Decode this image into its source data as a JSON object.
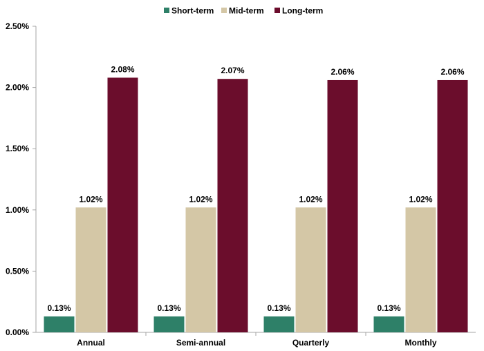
{
  "chart_data": {
    "type": "bar",
    "categories": [
      "Annual",
      "Semi-annual",
      "Quarterly",
      "Monthly"
    ],
    "series": [
      {
        "name": "Short-term",
        "values": [
          0.13,
          0.13,
          0.13,
          0.13
        ],
        "labels": [
          "0.13%",
          "0.13%",
          "0.13%",
          "0.13%"
        ],
        "color": "#2E8068"
      },
      {
        "name": "Mid-term",
        "values": [
          1.02,
          1.02,
          1.02,
          1.02
        ],
        "labels": [
          "1.02%",
          "1.02%",
          "1.02%",
          "1.02%"
        ],
        "color": "#D4C7A6"
      },
      {
        "name": "Long-term",
        "values": [
          2.08,
          2.07,
          2.06,
          2.06
        ],
        "labels": [
          "2.08%",
          "2.07%",
          "2.06%",
          "2.06%"
        ],
        "color": "#6B0D2C"
      }
    ],
    "y_ticks": [
      {
        "value": 0,
        "label": "0.00%"
      },
      {
        "value": 0.5,
        "label": "0.50%"
      },
      {
        "value": 1.0,
        "label": "1.00%"
      },
      {
        "value": 1.5,
        "label": "1.50%"
      },
      {
        "value": 2.0,
        "label": "2.00%"
      },
      {
        "value": 2.5,
        "label": "2.50%"
      }
    ],
    "ylim": [
      0,
      2.5
    ],
    "grid": false,
    "legend_position": "top-center",
    "title": "",
    "xlabel": "",
    "ylabel": ""
  }
}
